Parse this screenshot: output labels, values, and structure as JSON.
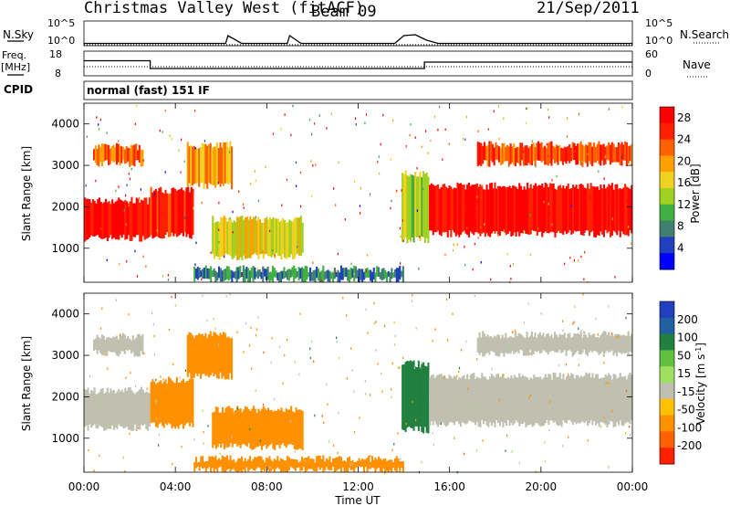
{
  "header": {
    "station": "Christmas Valley West (fitACF)",
    "beam": "Beam 09",
    "date": "21/Sep/2011"
  },
  "strips": {
    "nsky_label": "N.Sky",
    "nsky_ticks": [
      "10^5",
      "10^0"
    ],
    "nsearch_label": "N.Search",
    "nsearch_ticks": [
      "10^5",
      "10^0"
    ],
    "freq_label_1": "Freq.",
    "freq_label_2": "[MHz]",
    "freq_ticks": [
      "18",
      "8"
    ],
    "nave_label": "Nave",
    "nave_ticks": [
      "60",
      "0"
    ],
    "cpid_label": "CPID",
    "cpid_text": "normal (fast) 151 IF"
  },
  "chart_data": [
    {
      "type": "line",
      "title": "N.Sky / N.Search",
      "x": [
        0,
        6.2,
        6.3,
        6.9,
        8.9,
        9.0,
        9.5,
        13.6,
        14.0,
        14.5,
        15.0,
        15.5,
        24.0
      ],
      "series": [
        {
          "name": "N.Sky",
          "values_log10": [
            0.3,
            0.3,
            2.0,
            0.3,
            0.3,
            2.0,
            0.3,
            0.3,
            2.0,
            2.2,
            1.0,
            0.3,
            0.3
          ]
        },
        {
          "name": "N.Search",
          "values_log10": [
            0.0,
            0.0,
            0.0,
            0.0,
            0.0,
            0.0,
            0.0,
            0.0,
            0.0,
            0.0,
            0.0,
            0.0,
            0.0
          ]
        }
      ],
      "ylim_log10": [
        0,
        5
      ]
    },
    {
      "type": "line",
      "title": "Freq. / Nave",
      "x": [
        0,
        2.9,
        2.9,
        14.9,
        14.9,
        24.0
      ],
      "series": [
        {
          "name": "Freq. [MHz]",
          "values": [
            14.2,
            14.2,
            10.8,
            10.8,
            13.6,
            13.6
          ]
        },
        {
          "name": "Nave",
          "values": [
            10,
            10,
            10,
            10,
            10,
            10
          ]
        }
      ],
      "ylim": [
        8,
        18
      ]
    },
    {
      "type": "heatmap",
      "quantity": "Power",
      "xlabel": "",
      "ylabel": "Slant Range [km]",
      "xlim_hours": [
        0,
        24
      ],
      "ylim": [
        180,
        4500
      ],
      "yticks": [
        1000,
        2000,
        3000,
        4000
      ],
      "colorbar": {
        "label": "Power [dB]",
        "ticks": [
          4,
          8,
          12,
          16,
          20,
          24,
          28
        ],
        "range": [
          0,
          30
        ],
        "colors": [
          "#0000ff",
          "#2040c0",
          "#408070",
          "#40b040",
          "#a0d020",
          "#f0d020",
          "#ffa000",
          "#ff6000",
          "#ff2000",
          "#ff0000"
        ]
      },
      "regions": [
        {
          "t0": 0.0,
          "t1": 2.9,
          "r0": 1250,
          "r1": 2150,
          "value": 28
        },
        {
          "t0": 0.4,
          "t1": 2.6,
          "r0": 3050,
          "r1": 3450,
          "value": 22
        },
        {
          "t0": 2.9,
          "t1": 4.8,
          "r0": 1300,
          "r1": 2400,
          "value": 26
        },
        {
          "t0": 4.5,
          "t1": 6.5,
          "r0": 2500,
          "r1": 3500,
          "value": 20
        },
        {
          "t0": 5.6,
          "t1": 9.6,
          "r0": 800,
          "r1": 1700,
          "value": 16
        },
        {
          "t0": 4.8,
          "t1": 14.0,
          "r0": 230,
          "r1": 500,
          "value": 8
        },
        {
          "t0": 13.9,
          "t1": 15.1,
          "r0": 1200,
          "r1": 2800,
          "value": 14
        },
        {
          "t0": 15.1,
          "t1": 24.0,
          "r0": 1350,
          "r1": 2500,
          "value": 28
        },
        {
          "t0": 17.2,
          "t1": 24.0,
          "r0": 3050,
          "r1": 3500,
          "value": 24
        }
      ]
    },
    {
      "type": "heatmap",
      "quantity": "Velocity",
      "xlabel": "Time UT",
      "ylabel": "Slant Range [km]",
      "xlim_hours": [
        0,
        24
      ],
      "ylim": [
        180,
        4500
      ],
      "yticks": [
        1000,
        2000,
        3000,
        4000
      ],
      "xticks": [
        "00:00",
        "04:00",
        "08:00",
        "12:00",
        "16:00",
        "20:00",
        "00:00"
      ],
      "colorbar": {
        "label": "Velocity [m s^-1]",
        "ticks": [
          "200",
          "100",
          "50",
          "15",
          "-15",
          "-50",
          "-100",
          "-200"
        ],
        "colors": [
          "#2040c0",
          "#2060a0",
          "#208040",
          "#60c040",
          "#a0e060",
          "#c0c0b0",
          "#ffc000",
          "#ff9000",
          "#ff6000",
          "#ff2000"
        ]
      },
      "regions": [
        {
          "t0": 0.0,
          "t1": 2.9,
          "r0": 1250,
          "r1": 2150,
          "value": 0
        },
        {
          "t0": 0.4,
          "t1": 2.6,
          "r0": 3050,
          "r1": 3450,
          "value": 0
        },
        {
          "t0": 2.9,
          "t1": 4.8,
          "r0": 1300,
          "r1": 2400,
          "value": -60
        },
        {
          "t0": 4.5,
          "t1": 6.5,
          "r0": 2500,
          "r1": 3500,
          "value": -60
        },
        {
          "t0": 5.6,
          "t1": 9.6,
          "r0": 800,
          "r1": 1700,
          "value": -70
        },
        {
          "t0": 4.8,
          "t1": 14.0,
          "r0": 230,
          "r1": 500,
          "value": -50
        },
        {
          "t0": 13.9,
          "t1": 15.1,
          "r0": 1200,
          "r1": 2800,
          "value": 60
        },
        {
          "t0": 15.1,
          "t1": 24.0,
          "r0": 1350,
          "r1": 2500,
          "value": 0
        },
        {
          "t0": 17.2,
          "t1": 24.0,
          "r0": 3050,
          "r1": 3500,
          "value": 0
        }
      ]
    }
  ]
}
